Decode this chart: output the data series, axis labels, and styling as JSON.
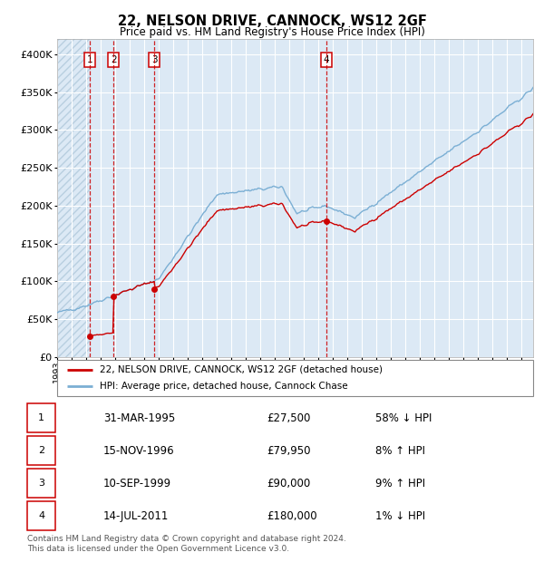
{
  "title": "22, NELSON DRIVE, CANNOCK, WS12 2GF",
  "subtitle": "Price paid vs. HM Land Registry's House Price Index (HPI)",
  "ylim": [
    0,
    420000
  ],
  "yticks": [
    0,
    50000,
    100000,
    150000,
    200000,
    250000,
    300000,
    350000,
    400000
  ],
  "ytick_labels": [
    "£0",
    "£50K",
    "£100K",
    "£150K",
    "£200K",
    "£250K",
    "£300K",
    "£350K",
    "£400K"
  ],
  "xlim_start": 1993.0,
  "xlim_end": 2025.8,
  "bg_color": "#dce9f5",
  "hatch_color": "#b8cfe0",
  "grid_color": "#ffffff",
  "sale_line_color": "#cc0000",
  "hpi_line_color": "#7bafd4",
  "marker_color": "#cc0000",
  "vline_color": "#cc0000",
  "legend_sale_label": "22, NELSON DRIVE, CANNOCK, WS12 2GF (detached house)",
  "legend_hpi_label": "HPI: Average price, detached house, Cannock Chase",
  "transactions": [
    {
      "num": 1,
      "date_str": "31-MAR-1995",
      "year": 1995.25,
      "price": 27500,
      "pct": "58%",
      "dir": "↓"
    },
    {
      "num": 2,
      "date_str": "15-NOV-1996",
      "year": 1996.88,
      "price": 79950,
      "pct": "8%",
      "dir": "↑"
    },
    {
      "num": 3,
      "date_str": "10-SEP-1999",
      "year": 1999.7,
      "price": 90000,
      "pct": "9%",
      "dir": "↑"
    },
    {
      "num": 4,
      "date_str": "14-JUL-2011",
      "year": 2011.54,
      "price": 180000,
      "pct": "1%",
      "dir": "↓"
    }
  ],
  "footnote": "Contains HM Land Registry data © Crown copyright and database right 2024.\nThis data is licensed under the Open Government Licence v3.0.",
  "hatch_region_end": 1995.25
}
